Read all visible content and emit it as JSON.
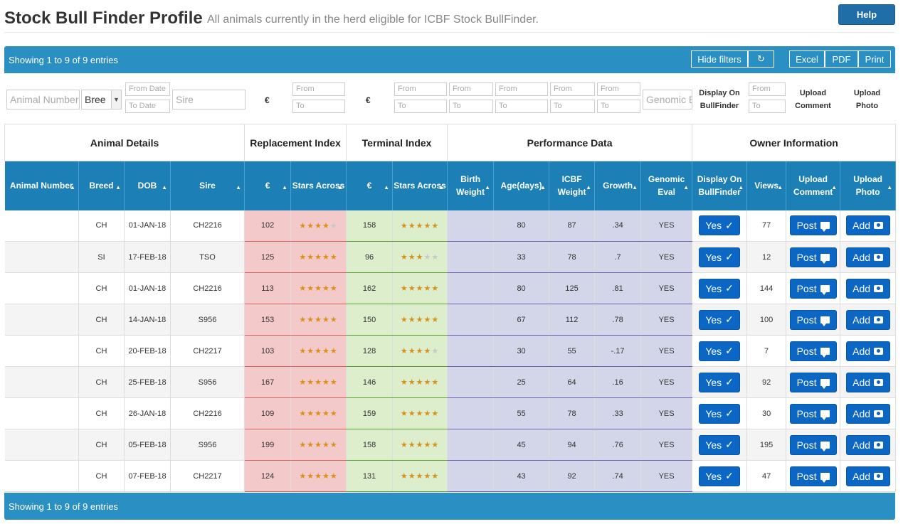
{
  "header": {
    "title": "Stock Bull Finder Profile",
    "subtitle": "All animals currently in the herd eligible for ICBF Stock BullFinder.",
    "help_label": "Help"
  },
  "toolbar": {
    "info": "Showing 1 to 9 of 9 entries",
    "hide_filters_label": "Hide filters",
    "refresh_icon": "↻",
    "excel_label": "Excel",
    "pdf_label": "PDF",
    "print_label": "Print"
  },
  "footer": {
    "info": "Showing 1 to 9 of 9 entries"
  },
  "filters": {
    "animal_number_placeholder": "Animal Number",
    "breed_value": "Bree",
    "from_date_placeholder": "From Date",
    "to_date_placeholder": "To Date",
    "sire_placeholder": "Sire",
    "euro_symbol": "€",
    "from_placeholder": "From",
    "to_placeholder": "To",
    "genomic_placeholder": "Genomic E",
    "display_on_label": "Display On BullFinder",
    "upload_comment_label": "Upload Comment",
    "upload_photo_label": "Upload Photo"
  },
  "groups": {
    "animal_details": "Animal Details",
    "replacement_index": "Replacement Index",
    "terminal_index": "Terminal Index",
    "performance_data": "Performance Data",
    "owner_information": "Owner Information"
  },
  "columns": {
    "animal_number": "Animal Number",
    "breed": "Breed",
    "dob": "DOB",
    "sire": "Sire",
    "rep_euro": "€",
    "rep_stars": "Stars Across",
    "term_euro": "€",
    "term_stars": "Stars Across",
    "birth_weight": "Birth Weight",
    "age_days": "Age(days)",
    "icbf_weight": "ICBF Weight",
    "growth": "Growth",
    "genomic_eval": "Genomic Eval",
    "display_on": "Display On BullFinder",
    "views": "Views",
    "upload_comment": "Upload Comment",
    "upload_photo": "Upload Photo"
  },
  "buttons": {
    "yes": "Yes",
    "post": "Post",
    "add": "Add"
  },
  "colors": {
    "header_blue": "#1c7fb6",
    "bar_blue": "#2a8fc2",
    "btn_blue": "#0c66c4",
    "replacement": "#f3c9c9",
    "terminal": "#dceecb",
    "performance": "#d3d6e8",
    "star": "#d8901a"
  },
  "rows": [
    {
      "animal_number": "",
      "breed": "CH",
      "dob": "01-JAN-18",
      "sire": "CH2216",
      "rep_euro": "102",
      "rep_stars": 4,
      "term_euro": "158",
      "term_stars": 5,
      "birth_weight": "",
      "age": "80",
      "icbf_weight": "87",
      "growth": ".34",
      "genomic": "YES",
      "views": "77"
    },
    {
      "animal_number": "",
      "breed": "SI",
      "dob": "17-FEB-18",
      "sire": "TSO",
      "rep_euro": "125",
      "rep_stars": 5,
      "term_euro": "96",
      "term_stars": 3,
      "birth_weight": "",
      "age": "33",
      "icbf_weight": "78",
      "growth": ".7",
      "genomic": "YES",
      "views": "12"
    },
    {
      "animal_number": "",
      "breed": "CH",
      "dob": "01-JAN-18",
      "sire": "CH2216",
      "rep_euro": "113",
      "rep_stars": 5,
      "term_euro": "162",
      "term_stars": 5,
      "birth_weight": "",
      "age": "80",
      "icbf_weight": "125",
      "growth": ".81",
      "genomic": "YES",
      "views": "144"
    },
    {
      "animal_number": "",
      "breed": "CH",
      "dob": "14-JAN-18",
      "sire": "S956",
      "rep_euro": "153",
      "rep_stars": 5,
      "term_euro": "150",
      "term_stars": 5,
      "birth_weight": "",
      "age": "67",
      "icbf_weight": "112",
      "growth": ".78",
      "genomic": "YES",
      "views": "100"
    },
    {
      "animal_number": "",
      "breed": "CH",
      "dob": "20-FEB-18",
      "sire": "CH2217",
      "rep_euro": "103",
      "rep_stars": 5,
      "term_euro": "128",
      "term_stars": 4,
      "birth_weight": "",
      "age": "30",
      "icbf_weight": "55",
      "growth": "-.17",
      "genomic": "YES",
      "views": "7"
    },
    {
      "animal_number": "",
      "breed": "CH",
      "dob": "25-FEB-18",
      "sire": "S956",
      "rep_euro": "167",
      "rep_stars": 5,
      "term_euro": "146",
      "term_stars": 5,
      "birth_weight": "",
      "age": "25",
      "icbf_weight": "64",
      "growth": ".16",
      "genomic": "YES",
      "views": "92"
    },
    {
      "animal_number": "",
      "breed": "CH",
      "dob": "26-JAN-18",
      "sire": "CH2216",
      "rep_euro": "109",
      "rep_stars": 5,
      "term_euro": "159",
      "term_stars": 5,
      "birth_weight": "",
      "age": "55",
      "icbf_weight": "78",
      "growth": ".33",
      "genomic": "YES",
      "views": "30"
    },
    {
      "animal_number": "",
      "breed": "CH",
      "dob": "05-FEB-18",
      "sire": "S956",
      "rep_euro": "199",
      "rep_stars": 5,
      "term_euro": "158",
      "term_stars": 5,
      "birth_weight": "",
      "age": "45",
      "icbf_weight": "94",
      "growth": ".76",
      "genomic": "YES",
      "views": "195"
    },
    {
      "animal_number": "",
      "breed": "CH",
      "dob": "07-FEB-18",
      "sire": "CH2217",
      "rep_euro": "124",
      "rep_stars": 5,
      "term_euro": "131",
      "term_stars": 5,
      "birth_weight": "",
      "age": "43",
      "icbf_weight": "92",
      "growth": ".74",
      "genomic": "YES",
      "views": "47"
    }
  ]
}
